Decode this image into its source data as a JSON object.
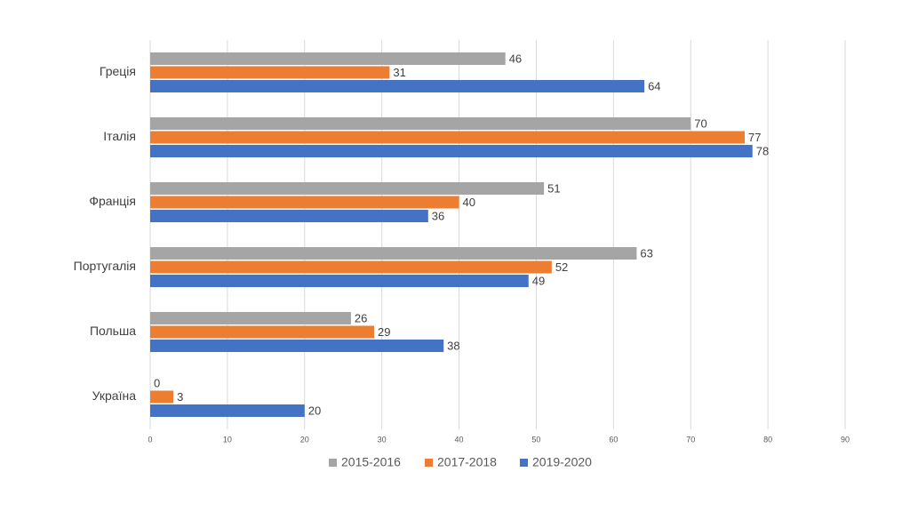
{
  "chart_data": {
    "type": "bar",
    "orientation": "horizontal",
    "categories": [
      "Греція",
      "Італія",
      "Франція",
      "Португалія",
      "Польша",
      "Україна"
    ],
    "series": [
      {
        "name": "2015-2016",
        "color": "#a5a5a5",
        "values": [
          46,
          70,
          51,
          63,
          26,
          0
        ]
      },
      {
        "name": "2017-2018",
        "color": "#ed7d31",
        "values": [
          31,
          77,
          40,
          52,
          29,
          3
        ]
      },
      {
        "name": "2019-2020",
        "color": "#4472c4",
        "values": [
          64,
          78,
          36,
          49,
          38,
          20
        ]
      }
    ],
    "xlim": [
      0,
      90
    ],
    "xticks": [
      0,
      10,
      20,
      30,
      40,
      50,
      60,
      70,
      80,
      90
    ],
    "grid": true,
    "legend": "bottom",
    "data_labels": true
  }
}
